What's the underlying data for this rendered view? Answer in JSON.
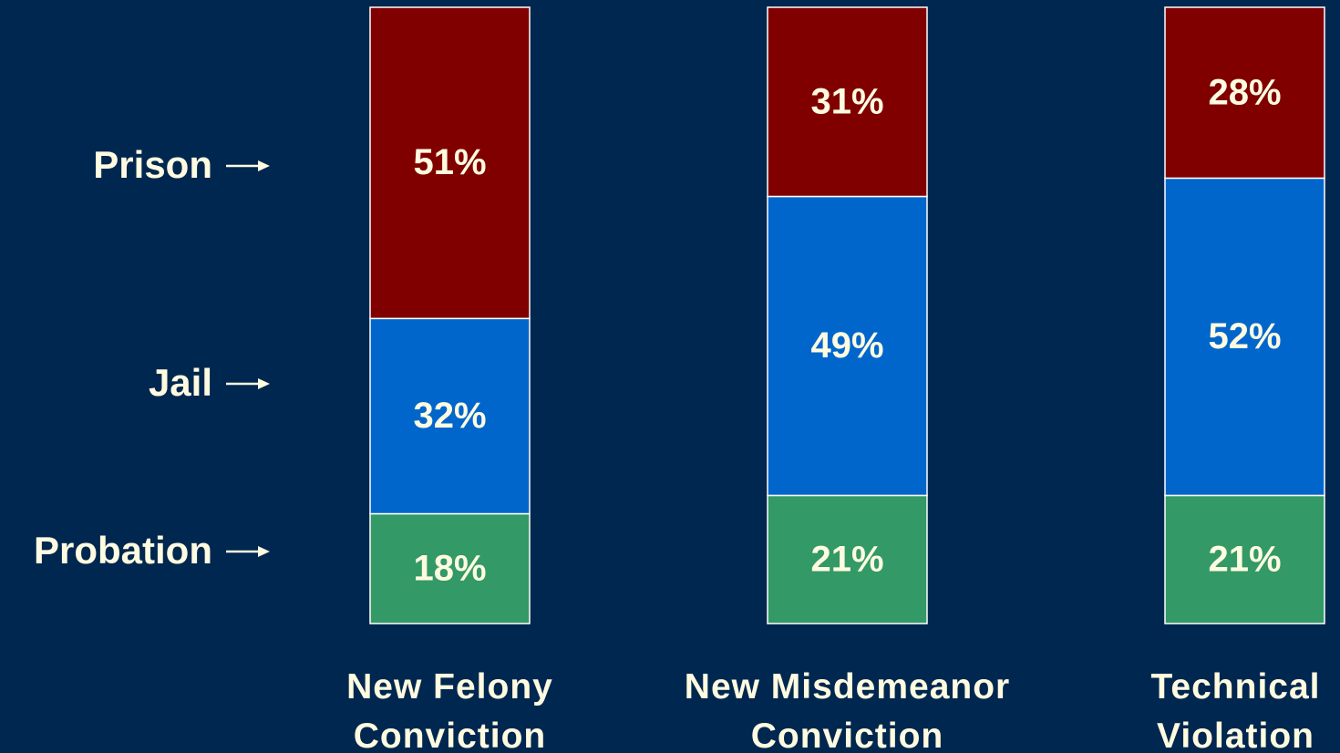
{
  "chart_data": {
    "type": "stacked_bar",
    "categories": [
      "New Felony\nConviction",
      "New Misdemeanor\nConviction",
      "Technical\nViolation"
    ],
    "series": [
      {
        "name": "Probation",
        "color": "#339966",
        "values": [
          18,
          21,
          21
        ],
        "value_labels": [
          "18%",
          "21%",
          "21%"
        ]
      },
      {
        "name": "Jail",
        "color": "#0066cc",
        "values": [
          32,
          49,
          52
        ],
        "value_labels": [
          "32%",
          "49%",
          "52%"
        ]
      },
      {
        "name": "Prison",
        "color": "#800000",
        "values": [
          51,
          31,
          28
        ],
        "value_labels": [
          "51%",
          "31%",
          "28%"
        ]
      }
    ],
    "text_color": "#fffbe0"
  }
}
